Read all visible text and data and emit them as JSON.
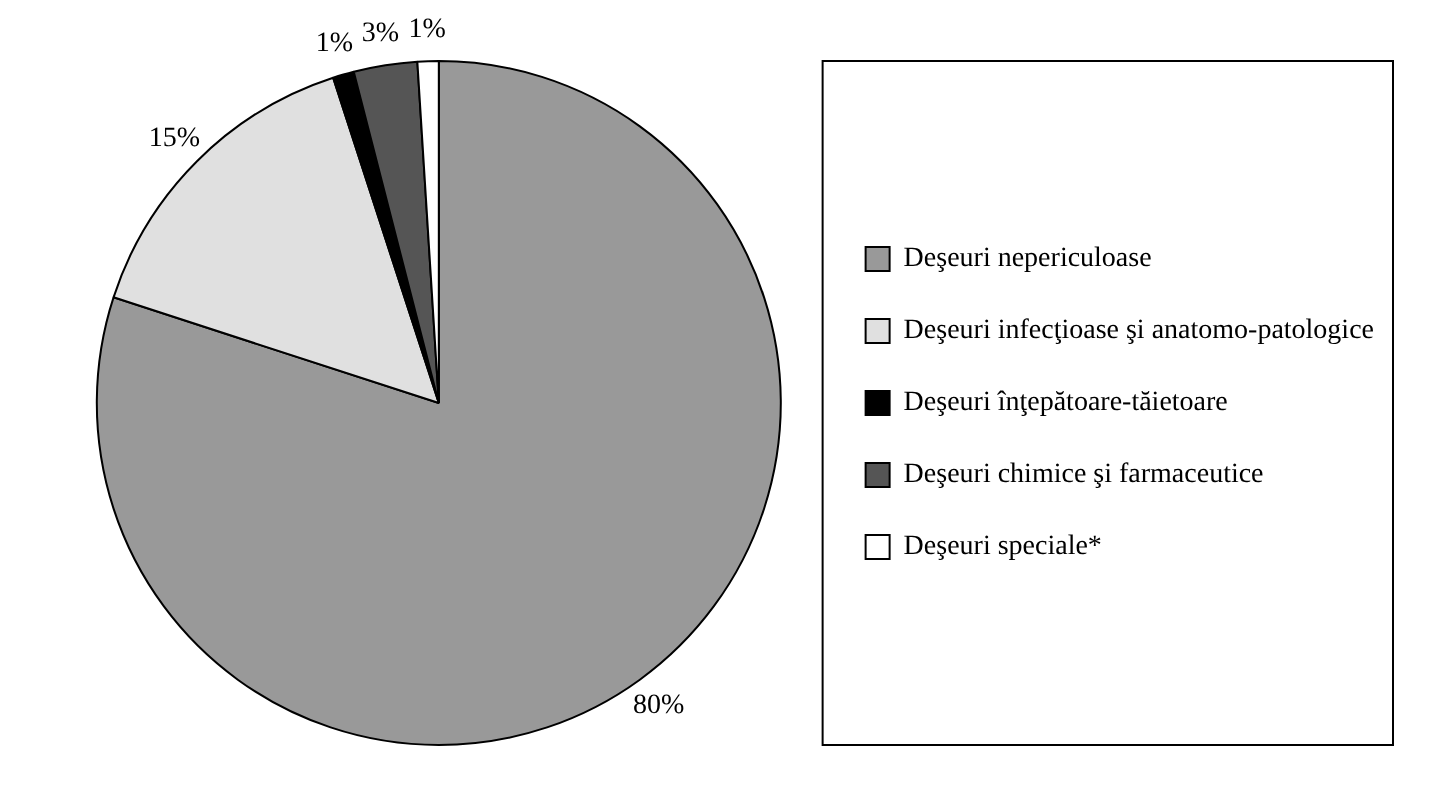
{
  "chart_data": {
    "type": "pie",
    "categories": [
      "Deşeuri nepericuloase",
      "Deşeuri infecţioase şi anatomo-patologice",
      "Deşeuri înţepătoare-tăietoare",
      "Deşeuri chimice şi farmaceutice",
      "Deşeuri speciale*"
    ],
    "values": [
      80,
      15,
      1,
      3,
      1
    ],
    "colors": [
      "#999999",
      "#e0e0e0",
      "#000000",
      "#555555",
      "#ffffff"
    ],
    "value_labels": [
      "80%",
      "15%",
      "1%",
      "3%",
      "1%"
    ],
    "legend": "right"
  }
}
